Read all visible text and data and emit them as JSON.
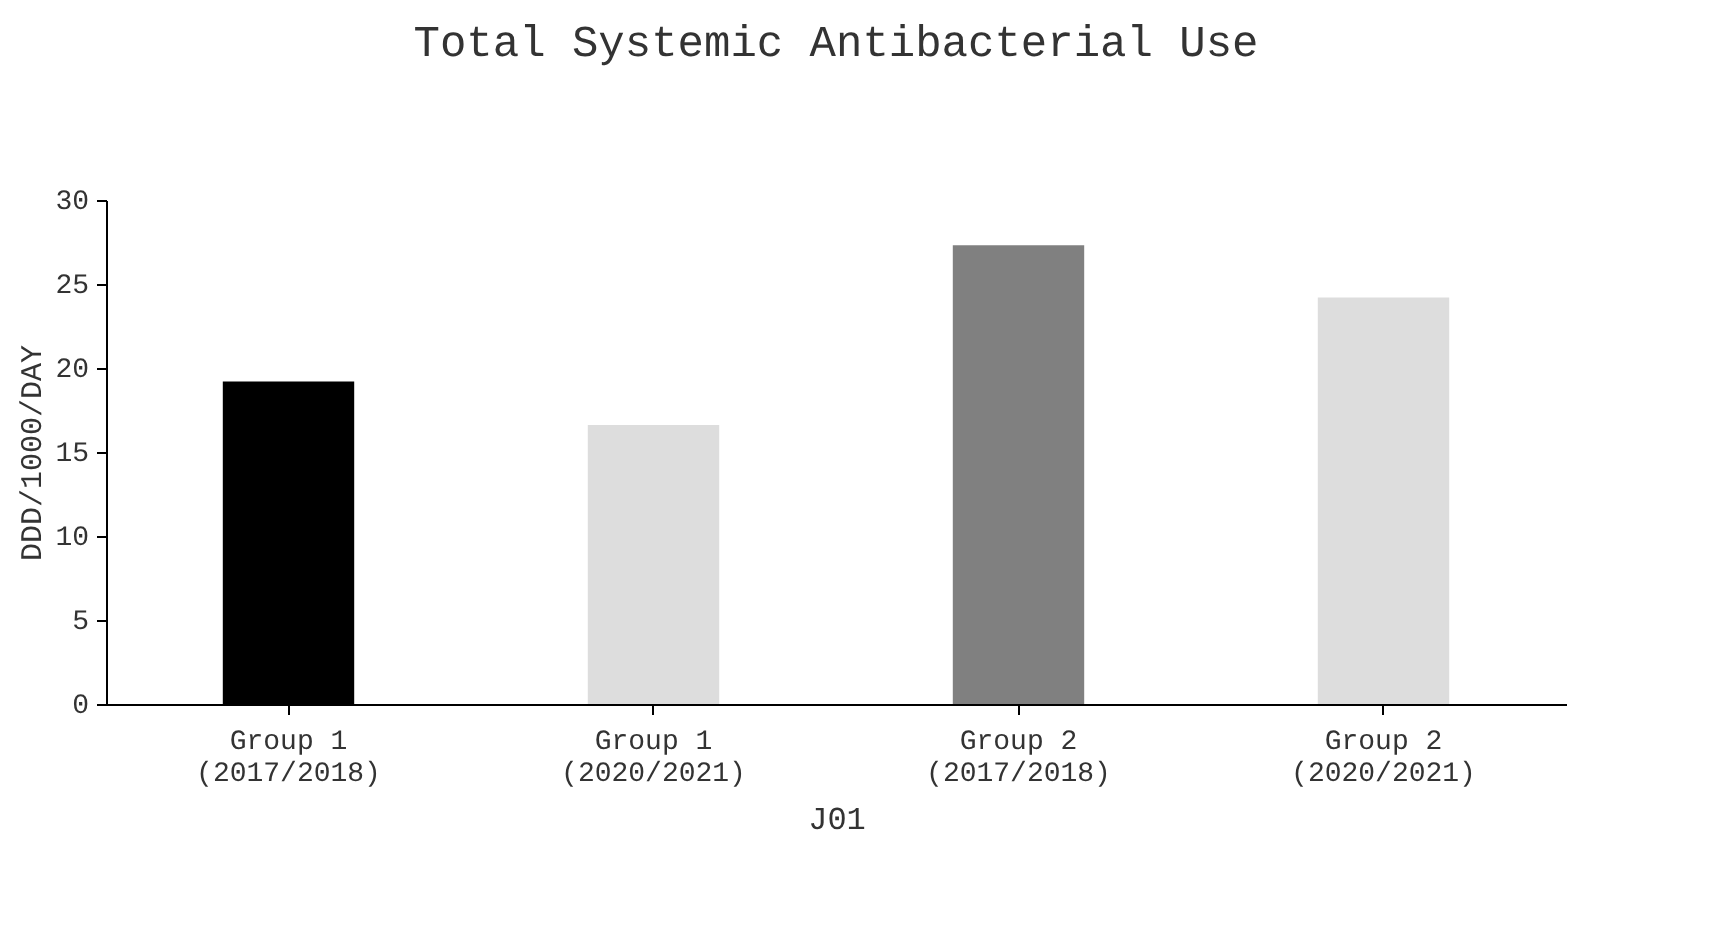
{
  "chart_data": {
    "type": "bar",
    "title": "Total Systemic Antibacterial Use",
    "xlabel": "J01",
    "ylabel": "DDD/1000/DAY",
    "categories": [
      "Group 1\n(2017/2018)",
      "Group 1\n(2020/2021)",
      "Group 2\n(2017/2018)",
      "Group 2\n(2020/2021)"
    ],
    "values": [
      19.2,
      16.6,
      27.3,
      24.2
    ],
    "colors": [
      "#000000",
      "#dddddd",
      "#808080",
      "#dddddd"
    ],
    "ylim": [
      0,
      30
    ],
    "yticks": [
      0,
      5,
      10,
      15,
      20,
      25,
      30
    ],
    "grid": false
  }
}
